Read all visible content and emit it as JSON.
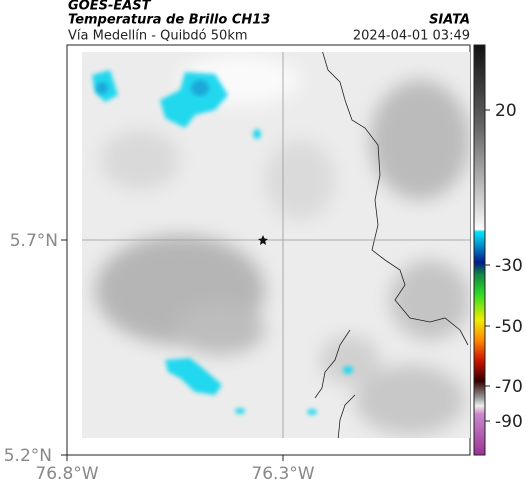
{
  "header": {
    "source": "GOES-EAST",
    "title": "Temperatura de Brillo CH13",
    "subtitle": "Vía Medellín - Quibdó 50km",
    "agency": "SIATA",
    "datetime": "2024-04-01 03:49"
  },
  "map": {
    "lat_labels": [
      "5.7°N",
      "5.2°N"
    ],
    "lon_labels": [
      "76.8°W",
      "76.3°W"
    ]
  },
  "colorbar": {
    "ticks": [
      "20",
      "-30",
      "-50",
      "-70",
      "-90"
    ]
  }
}
